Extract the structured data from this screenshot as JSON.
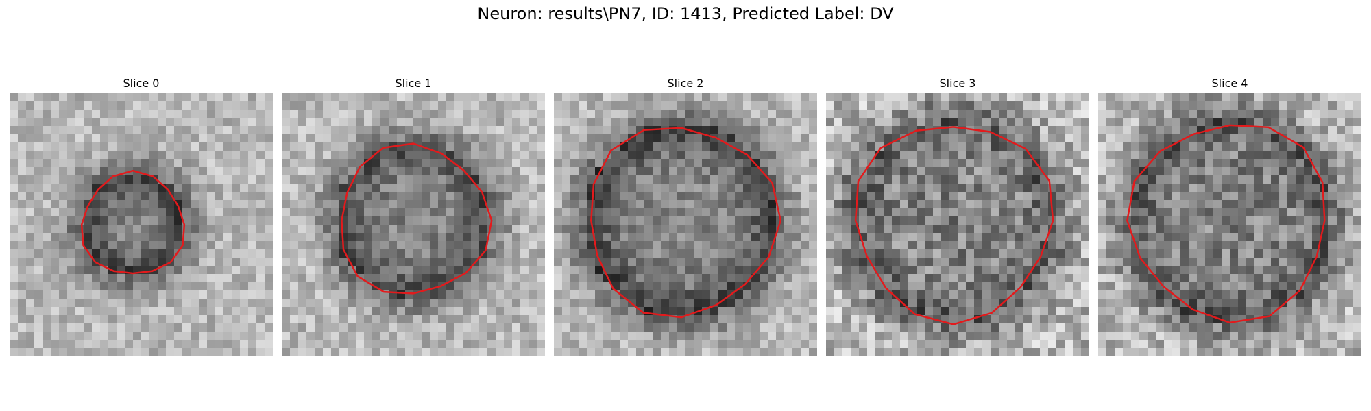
{
  "figure": {
    "title": "Neuron: results\\PN7, ID: 1413, Predicted Label: DV",
    "colormap": "gray",
    "contour_color": "#e31a1c"
  },
  "panels": [
    {
      "title": "Slice 0"
    },
    {
      "title": "Slice 1"
    },
    {
      "title": "Slice 2"
    },
    {
      "title": "Slice 3"
    },
    {
      "title": "Slice 4"
    }
  ]
}
